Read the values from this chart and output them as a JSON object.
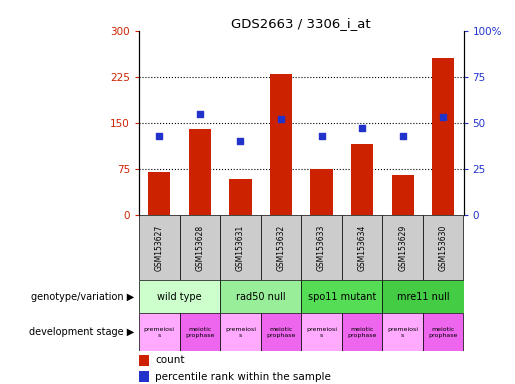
{
  "title": "GDS2663 / 3306_i_at",
  "samples": [
    "GSM153627",
    "GSM153628",
    "GSM153631",
    "GSM153632",
    "GSM153633",
    "GSM153634",
    "GSM153629",
    "GSM153630"
  ],
  "counts": [
    70,
    140,
    58,
    230,
    75,
    115,
    65,
    255
  ],
  "percentiles": [
    43,
    55,
    40,
    52,
    43,
    47,
    43,
    53
  ],
  "ylim_left": [
    0,
    300
  ],
  "ylim_right": [
    0,
    100
  ],
  "yticks_left": [
    0,
    75,
    150,
    225,
    300
  ],
  "yticks_right": [
    0,
    25,
    50,
    75,
    100
  ],
  "ytick_labels_left": [
    "0",
    "75",
    "150",
    "225",
    "300"
  ],
  "ytick_labels_right": [
    "0",
    "25",
    "50",
    "75",
    "100%"
  ],
  "bar_color": "#cc2200",
  "dot_color": "#2233cc",
  "genotype_groups": [
    {
      "label": "wild type",
      "start": 0,
      "end": 2,
      "color": "#ccffcc"
    },
    {
      "label": "rad50 null",
      "start": 2,
      "end": 4,
      "color": "#99ee99"
    },
    {
      "label": "spo11 mutant",
      "start": 4,
      "end": 6,
      "color": "#55dd55"
    },
    {
      "label": "mre11 null",
      "start": 6,
      "end": 8,
      "color": "#44cc44"
    }
  ],
  "dev_stage_groups": [
    {
      "label": "premeiosi\ns",
      "color": "#ffaaff"
    },
    {
      "label": "meiotic\nprophase",
      "color": "#ee66ee"
    },
    {
      "label": "premeiosi\ns",
      "color": "#ffaaff"
    },
    {
      "label": "meiotic\nprophase",
      "color": "#ee66ee"
    },
    {
      "label": "premeiosi\ns",
      "color": "#ffaaff"
    },
    {
      "label": "meiotic\nprophase",
      "color": "#ee66ee"
    },
    {
      "label": "premeiosi\ns",
      "color": "#ffaaff"
    },
    {
      "label": "meiotic\nprophase",
      "color": "#ee66ee"
    }
  ],
  "legend_count_label": "count",
  "legend_percentile_label": "percentile rank within the sample",
  "bar_color_legend": "#cc2200",
  "dot_color_legend": "#2233cc",
  "grid_color": "black",
  "left_axis_color": "#cc2200",
  "right_axis_color": "#2233cc",
  "sample_box_color": "#cccccc",
  "label_genotype": "genotype/variation",
  "label_devstage": "development stage"
}
